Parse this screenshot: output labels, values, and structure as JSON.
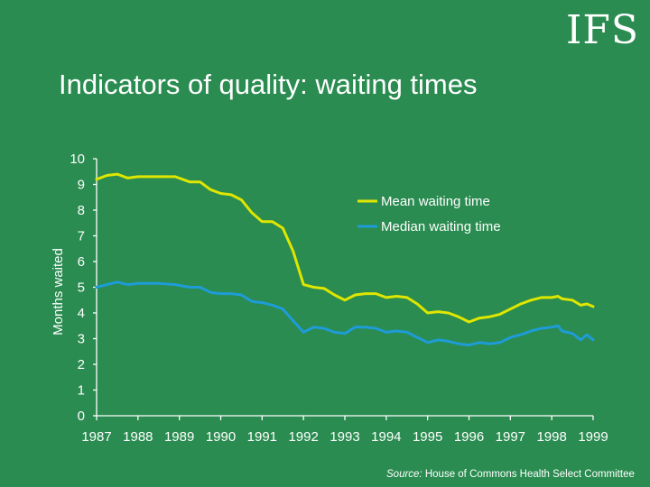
{
  "logo": "IFS",
  "title": "Indicators of quality: waiting times",
  "source": {
    "label": "Source:",
    "text": "House of Commons Health Select Committee"
  },
  "colors": {
    "background": "#2a8c50",
    "mean_line": "#dfe600",
    "median_line": "#1f9bd7",
    "axis": "#ffffff"
  },
  "chart_data": {
    "type": "line",
    "title": "",
    "xlabel": "",
    "ylabel": "Months waited",
    "xlim": [
      1987,
      1999
    ],
    "ylim": [
      0,
      10
    ],
    "x_ticks": [
      "1987",
      "1988",
      "1989",
      "1990",
      "1991",
      "1992",
      "1993",
      "1994",
      "1995",
      "1996",
      "1997",
      "1998",
      "1999"
    ],
    "y_ticks": [
      "0",
      "1",
      "2",
      "3",
      "4",
      "5",
      "6",
      "7",
      "8",
      "9",
      "10"
    ],
    "grid": false,
    "legend_position": "top-right",
    "series": [
      {
        "name": "Mean waiting time",
        "color": "#dfe600",
        "x": [
          1987,
          1987.25,
          1987.5,
          1987.75,
          1988,
          1988.5,
          1988.9,
          1989.25,
          1989.5,
          1989.75,
          1990,
          1990.25,
          1990.5,
          1990.75,
          1991,
          1991.25,
          1991.5,
          1991.75,
          1992,
          1992.25,
          1992.5,
          1992.75,
          1993,
          1993.25,
          1993.5,
          1993.75,
          1994,
          1994.25,
          1994.5,
          1994.75,
          1995,
          1995.25,
          1995.5,
          1995.75,
          1996,
          1996.25,
          1996.5,
          1996.75,
          1997,
          1997.25,
          1997.5,
          1997.75,
          1998,
          1998.15,
          1998.25,
          1998.5,
          1998.7,
          1998.85,
          1999
        ],
        "y": [
          9.2,
          9.35,
          9.4,
          9.25,
          9.3,
          9.3,
          9.3,
          9.1,
          9.1,
          8.8,
          8.65,
          8.6,
          8.4,
          7.9,
          7.55,
          7.55,
          7.3,
          6.4,
          5.1,
          5.0,
          4.95,
          4.7,
          4.5,
          4.7,
          4.75,
          4.75,
          4.6,
          4.65,
          4.6,
          4.35,
          4.0,
          4.05,
          4.0,
          3.85,
          3.65,
          3.8,
          3.85,
          3.95,
          4.15,
          4.35,
          4.5,
          4.6,
          4.6,
          4.65,
          4.55,
          4.5,
          4.3,
          4.35,
          4.25
        ]
      },
      {
        "name": "Median waiting time",
        "color": "#1f9bd7",
        "x": [
          1987,
          1987.25,
          1987.5,
          1987.75,
          1988,
          1988.5,
          1988.9,
          1989.25,
          1989.5,
          1989.75,
          1990,
          1990.25,
          1990.5,
          1990.75,
          1991,
          1991.25,
          1991.5,
          1991.75,
          1992,
          1992.25,
          1992.5,
          1992.75,
          1993,
          1993.25,
          1993.5,
          1993.75,
          1994,
          1994.25,
          1994.5,
          1994.75,
          1995,
          1995.25,
          1995.5,
          1995.75,
          1996,
          1996.25,
          1996.5,
          1996.75,
          1997,
          1997.25,
          1997.5,
          1997.75,
          1998,
          1998.15,
          1998.25,
          1998.5,
          1998.7,
          1998.85,
          1999
        ],
        "y": [
          5.0,
          5.1,
          5.2,
          5.1,
          5.15,
          5.15,
          5.1,
          5.0,
          5.0,
          4.8,
          4.75,
          4.75,
          4.7,
          4.45,
          4.4,
          4.3,
          4.15,
          3.7,
          3.25,
          3.45,
          3.4,
          3.25,
          3.2,
          3.45,
          3.45,
          3.4,
          3.25,
          3.3,
          3.25,
          3.05,
          2.85,
          2.95,
          2.9,
          2.8,
          2.75,
          2.85,
          2.8,
          2.85,
          3.05,
          3.15,
          3.3,
          3.4,
          3.45,
          3.5,
          3.3,
          3.2,
          2.95,
          3.15,
          2.95
        ]
      }
    ]
  }
}
